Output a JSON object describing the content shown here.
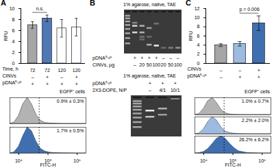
{
  "chart_data": [
    {
      "panel": "A",
      "type": "bar",
      "y_label": "RFU",
      "categories": [
        null,
        null,
        null,
        null
      ],
      "values": [
        7.0,
        8.2,
        6.4,
        6.6
      ],
      "errors": [
        0.6,
        0.6,
        1.6,
        1.6
      ],
      "colors": [
        "#a6a6a6",
        "#4f78b5",
        "#ffffff",
        "#ffffff"
      ],
      "ylim": [
        0,
        10
      ],
      "yticks": [
        0,
        2,
        4,
        6,
        8,
        10
      ],
      "conditions": [
        {
          "label": "Time, h",
          "values": [
            "72",
            "72",
            "120",
            "120"
          ]
        },
        {
          "label": "CINVs",
          "values": [
            "–",
            "+",
            "–",
            "+"
          ]
        },
        {
          "label": "pDNA⁰·²⁵",
          "values": [
            "+",
            "+",
            "+",
            "+"
          ]
        }
      ],
      "annotations": [
        {
          "text": "n.s.",
          "from": 0,
          "to": 1
        }
      ]
    },
    {
      "type": "area",
      "title": "EGFP⁺ cells",
      "x_label": "FITC-H",
      "log": "x",
      "x": [
        5000,
        7000,
        10000,
        14000,
        20000,
        28000,
        40000,
        56000,
        80000,
        112000,
        160000,
        320000,
        1000000,
        2000000
      ],
      "xlim": [
        5000,
        2000000
      ],
      "xticks": [
        {
          "value": 10000,
          "label": "10⁴"
        },
        {
          "value": 100000,
          "label": "10⁵"
        },
        {
          "value": 1000000,
          "label": "10⁶"
        }
      ],
      "ylim": [
        0,
        1
      ],
      "tick_labels": "x",
      "gate": 50000,
      "series": [
        {
          "label": "0.9% ± 0.3%",
          "color": "#b3b3b3",
          "values": [
            0,
            0.05,
            0.3,
            0.75,
            1,
            0.75,
            0.35,
            0.12,
            0.04,
            0.02,
            0.01,
            0,
            0,
            0
          ]
        },
        {
          "label": "1.7% ± 0.5%",
          "color": "#3f6fb0",
          "values": [
            0,
            0.04,
            0.25,
            0.65,
            1,
            0.85,
            0.45,
            0.18,
            0.07,
            0.03,
            0.015,
            0.005,
            0,
            0
          ]
        }
      ]
    },
    {
      "panel": "B",
      "type": "gel",
      "title": "1% agarose, native, TAE",
      "rows": [
        {
          "label": "pDNA⁰·²⁵",
          "values": [
            null,
            "+",
            "+",
            "+",
            "+",
            "–",
            "–",
            "–"
          ]
        },
        {
          "label": "CINVs, µg",
          "values": [
            null,
            "–",
            "20",
            "50",
            "100",
            "20",
            "50",
            "100"
          ]
        }
      ]
    },
    {
      "type": "gel",
      "title": "1% agarose, native, TAE",
      "rows": [
        {
          "label": "pDNA⁰·²⁵",
          "values": [
            null,
            "+",
            "+",
            "+"
          ]
        },
        {
          "label": "2X3-DOPE, N/P",
          "values": [
            null,
            "–",
            "4/1",
            "10/1"
          ]
        }
      ]
    },
    {
      "panel": "C",
      "type": "bar",
      "y_label": "RFU",
      "categories": [
        null,
        null,
        null
      ],
      "values": [
        4.0,
        4.3,
        8.8
      ],
      "errors": [
        0.3,
        0.5,
        1.6
      ],
      "colors": [
        "#a6a6a6",
        "#9dbbe0",
        "#3f6fb0"
      ],
      "ylim": [
        0,
        12
      ],
      "yticks": [
        0,
        2,
        4,
        6,
        8,
        10,
        12
      ],
      "conditions": [
        {
          "label": "CINVs",
          "values": [
            "–",
            "–",
            "+"
          ]
        },
        {
          "label": "pDNA⁰·²⁵",
          "values": [
            "–",
            "+",
            "+"
          ]
        }
      ],
      "annotations": [
        {
          "text": "p = 0.006",
          "from": 1,
          "to": 2
        }
      ]
    },
    {
      "type": "area",
      "title": "EGFP⁺ cells",
      "x_label": "FITC-H",
      "log": "x",
      "x": [
        5000,
        7000,
        10000,
        14000,
        20000,
        28000,
        40000,
        56000,
        80000,
        112000,
        160000,
        320000,
        1000000,
        2000000
      ],
      "xlim": [
        5000,
        2000000
      ],
      "xticks": [
        {
          "value": 10000,
          "label": "10⁴"
        },
        {
          "value": 100000,
          "label": "10⁵"
        },
        {
          "value": 1000000,
          "label": "10⁶"
        }
      ],
      "ylim": [
        0,
        1
      ],
      "tick_labels": "x",
      "gate": 50000,
      "series": [
        {
          "label": "1.0% ± 0.7%",
          "color": "#b3b3b3",
          "values": [
            0,
            0.06,
            0.35,
            0.8,
            1,
            0.7,
            0.3,
            0.1,
            0.03,
            0.01,
            0.005,
            0,
            0,
            0
          ]
        },
        {
          "label": "2.2% ± 2.0%",
          "color": "#9dbbe0",
          "values": [
            0,
            0.04,
            0.28,
            0.7,
            1,
            0.8,
            0.4,
            0.15,
            0.06,
            0.03,
            0.01,
            0,
            0,
            0
          ]
        },
        {
          "label": "26.2% ± 6.2%",
          "color": "#3f6fb0",
          "values": [
            0,
            0.02,
            0.08,
            0.25,
            0.55,
            0.85,
            1,
            0.85,
            0.55,
            0.3,
            0.12,
            0.02,
            0,
            0
          ]
        }
      ]
    }
  ]
}
